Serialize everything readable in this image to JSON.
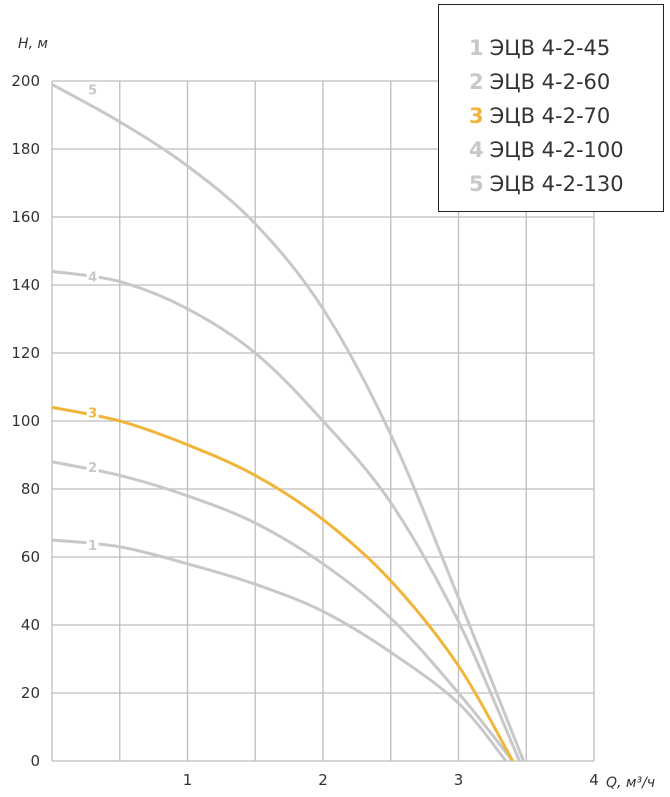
{
  "chart_data": {
    "type": "line",
    "xlabel": "Q, м³/ч",
    "ylabel": "H, м",
    "xlim": [
      0,
      4
    ],
    "ylim": [
      0,
      200
    ],
    "x_ticks": [
      "1",
      "2",
      "3",
      "4"
    ],
    "y_ticks": [
      "0",
      "20",
      "40",
      "60",
      "80",
      "100",
      "120",
      "140",
      "160",
      "180",
      "200"
    ],
    "grid": true,
    "legend_position": "top-right",
    "series": [
      {
        "name": "ЭЦВ 4-2-45",
        "label": "1",
        "color": "#c8c8c8",
        "points": [
          [
            0,
            65
          ],
          [
            0.5,
            63
          ],
          [
            1,
            58
          ],
          [
            1.5,
            52
          ],
          [
            2,
            44
          ],
          [
            2.5,
            32
          ],
          [
            3,
            17
          ],
          [
            3.35,
            0
          ]
        ]
      },
      {
        "name": "ЭЦВ 4-2-60",
        "label": "2",
        "color": "#c8c8c8",
        "points": [
          [
            0,
            88
          ],
          [
            0.5,
            84
          ],
          [
            1,
            78
          ],
          [
            1.5,
            70
          ],
          [
            2,
            58
          ],
          [
            2.5,
            42
          ],
          [
            3,
            20
          ],
          [
            3.4,
            0
          ]
        ]
      },
      {
        "name": "ЭЦВ 4-2-70",
        "label": "3",
        "color": "#f0b53a",
        "points": [
          [
            0,
            104
          ],
          [
            0.5,
            100
          ],
          [
            1,
            93
          ],
          [
            1.5,
            84
          ],
          [
            2,
            71
          ],
          [
            2.5,
            53
          ],
          [
            3,
            28
          ],
          [
            3.4,
            0
          ]
        ]
      },
      {
        "name": "ЭЦВ 4-2-100",
        "label": "4",
        "color": "#c8c8c8",
        "points": [
          [
            0,
            144
          ],
          [
            0.5,
            141
          ],
          [
            1,
            133
          ],
          [
            1.5,
            120
          ],
          [
            2,
            100
          ],
          [
            2.5,
            76
          ],
          [
            3,
            41
          ],
          [
            3.45,
            0
          ]
        ]
      },
      {
        "name": "ЭЦВ 4-2-130",
        "label": "5",
        "color": "#c8c8c8",
        "points": [
          [
            0,
            199
          ],
          [
            0.5,
            188
          ],
          [
            1,
            175
          ],
          [
            1.5,
            158
          ],
          [
            2,
            133
          ],
          [
            2.5,
            96
          ],
          [
            3,
            48
          ],
          [
            3.48,
            0
          ]
        ]
      }
    ]
  }
}
